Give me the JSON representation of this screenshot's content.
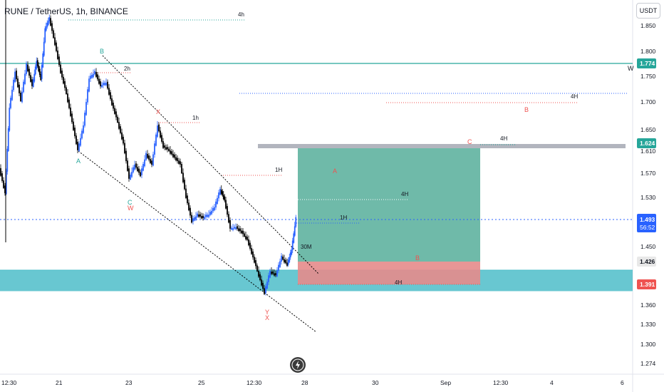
{
  "header": {
    "symbol_label": "RUNE / TetherUS, 1h, BINANCE",
    "currency_button": "USDT"
  },
  "price_axis": {
    "ticks": [
      "1.850",
      "1.800",
      "1.750",
      "1.700",
      "1.650",
      "1.610",
      "1.570",
      "1.530",
      "1.450",
      "1.360",
      "1.330",
      "1.300",
      "1.274"
    ],
    "badges": [
      {
        "label": "1.774",
        "sub": "",
        "color": "#26a69a"
      },
      {
        "label": "1.624",
        "sub": "",
        "color": "#26a69a"
      },
      {
        "label": "1.493",
        "sub": "56:52",
        "color": "#2962ff"
      },
      {
        "label": "1.426",
        "sub": "",
        "color": "#e8e8e8"
      },
      {
        "label": "1.391",
        "sub": "",
        "color": "#ef5350"
      }
    ]
  },
  "time_axis": {
    "ticks": [
      "12:30",
      "21",
      "23",
      "25",
      "12:30",
      "28",
      "30",
      "Sep",
      "12:30",
      "4",
      "6"
    ]
  },
  "annotations": {
    "timeframes": [
      "4h",
      "2h",
      "1h",
      "1H",
      "4H",
      "1H",
      "30M",
      "4H",
      "4H",
      "4H"
    ],
    "wave_labels_green": [
      "B",
      "A",
      "C"
    ],
    "wave_labels_red": [
      "W",
      "X",
      "X",
      "Y",
      "A",
      "B",
      "C",
      "B"
    ],
    "w_mark": "W"
  },
  "colors": {
    "candle_up": "#2962ff",
    "candle_down": "#000000",
    "teal_zone": "#4dbdc9",
    "long_profit": "#5fb3a0",
    "long_loss": "#e58b8b",
    "level_green": "#26a69a",
    "level_red": "#ef5350",
    "level_blue": "#2962ff",
    "level_gray": "#9aa0a8"
  },
  "icons": {
    "logo": "lightning-bolt-icon"
  }
}
